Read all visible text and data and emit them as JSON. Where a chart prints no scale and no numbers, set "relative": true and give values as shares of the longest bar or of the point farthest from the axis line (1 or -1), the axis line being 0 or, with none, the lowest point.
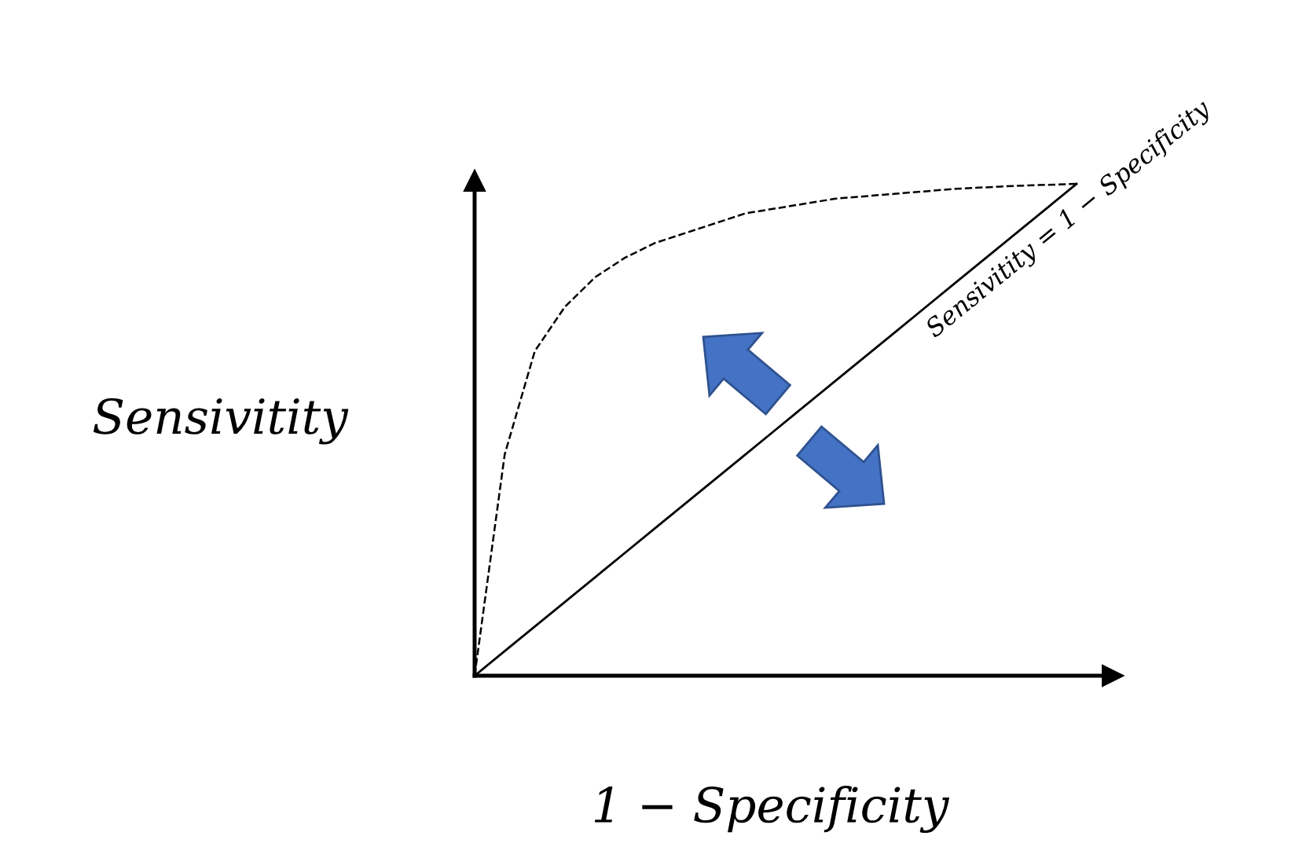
{
  "chart_data": {
    "type": "line",
    "relative": true,
    "xlabel": "1 − Specificity",
    "ylabel": "Sensivitity",
    "tick_labels": false,
    "marker": "none",
    "categories": [
      null,
      null,
      null,
      null,
      null,
      null,
      null,
      null,
      null,
      null,
      null,
      null,
      null,
      null,
      null,
      null,
      null,
      null,
      null,
      null,
      null
    ],
    "series": [
      {
        "color": "#000000",
        "line_style": "dashed",
        "values": [
          0,
          0.45,
          0.66,
          0.75,
          0.81,
          0.85,
          0.88,
          0.9,
          0.92,
          0.94,
          0.95,
          0.96,
          0.97,
          0.975,
          0.98,
          0.985,
          0.99,
          0.993,
          0.996,
          0.998,
          1
        ]
      },
      {
        "color": "#000000",
        "line_style": "solid",
        "values": [
          0,
          0.05,
          0.1,
          0.15,
          0.2,
          0.25,
          0.3,
          0.35,
          0.4,
          0.45,
          0.5,
          0.55,
          0.6,
          0.65,
          0.7,
          0.75,
          0.8,
          0.85,
          0.9,
          0.95,
          1
        ]
      }
    ],
    "annotations": [
      "Sensivitity = 1 − Specificity"
    ]
  }
}
